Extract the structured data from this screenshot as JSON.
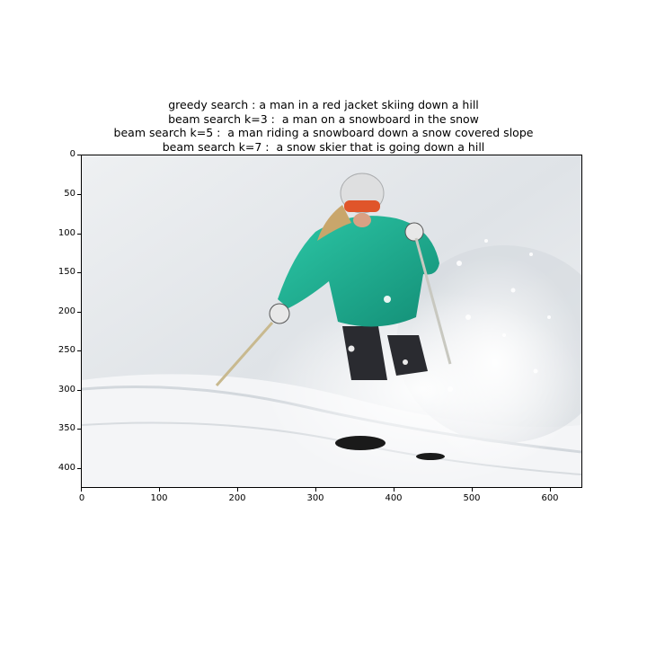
{
  "title": {
    "lines": [
      "greedy search : a man in a red jacket skiing down a hill",
      "beam search k=3 :  a man on a snowboard in the snow",
      "beam search k=5 :  a man riding a snowboard down a snow covered slope",
      "beam search k=7 :  a snow skier that is going down a hill"
    ]
  },
  "axes": {
    "y_ticks": [
      "0",
      "50",
      "100",
      "150",
      "200",
      "250",
      "300",
      "350",
      "400"
    ],
    "x_ticks": [
      "0",
      "100",
      "200",
      "300",
      "400",
      "500",
      "600"
    ]
  },
  "image": {
    "subject": "skier-in-powder",
    "colors": {
      "jacket": "#1fb89a",
      "snow": "#e9ecef",
      "helmet": "#dedfe0",
      "goggles": "#e0552a",
      "pants": "#2a2b30"
    }
  }
}
